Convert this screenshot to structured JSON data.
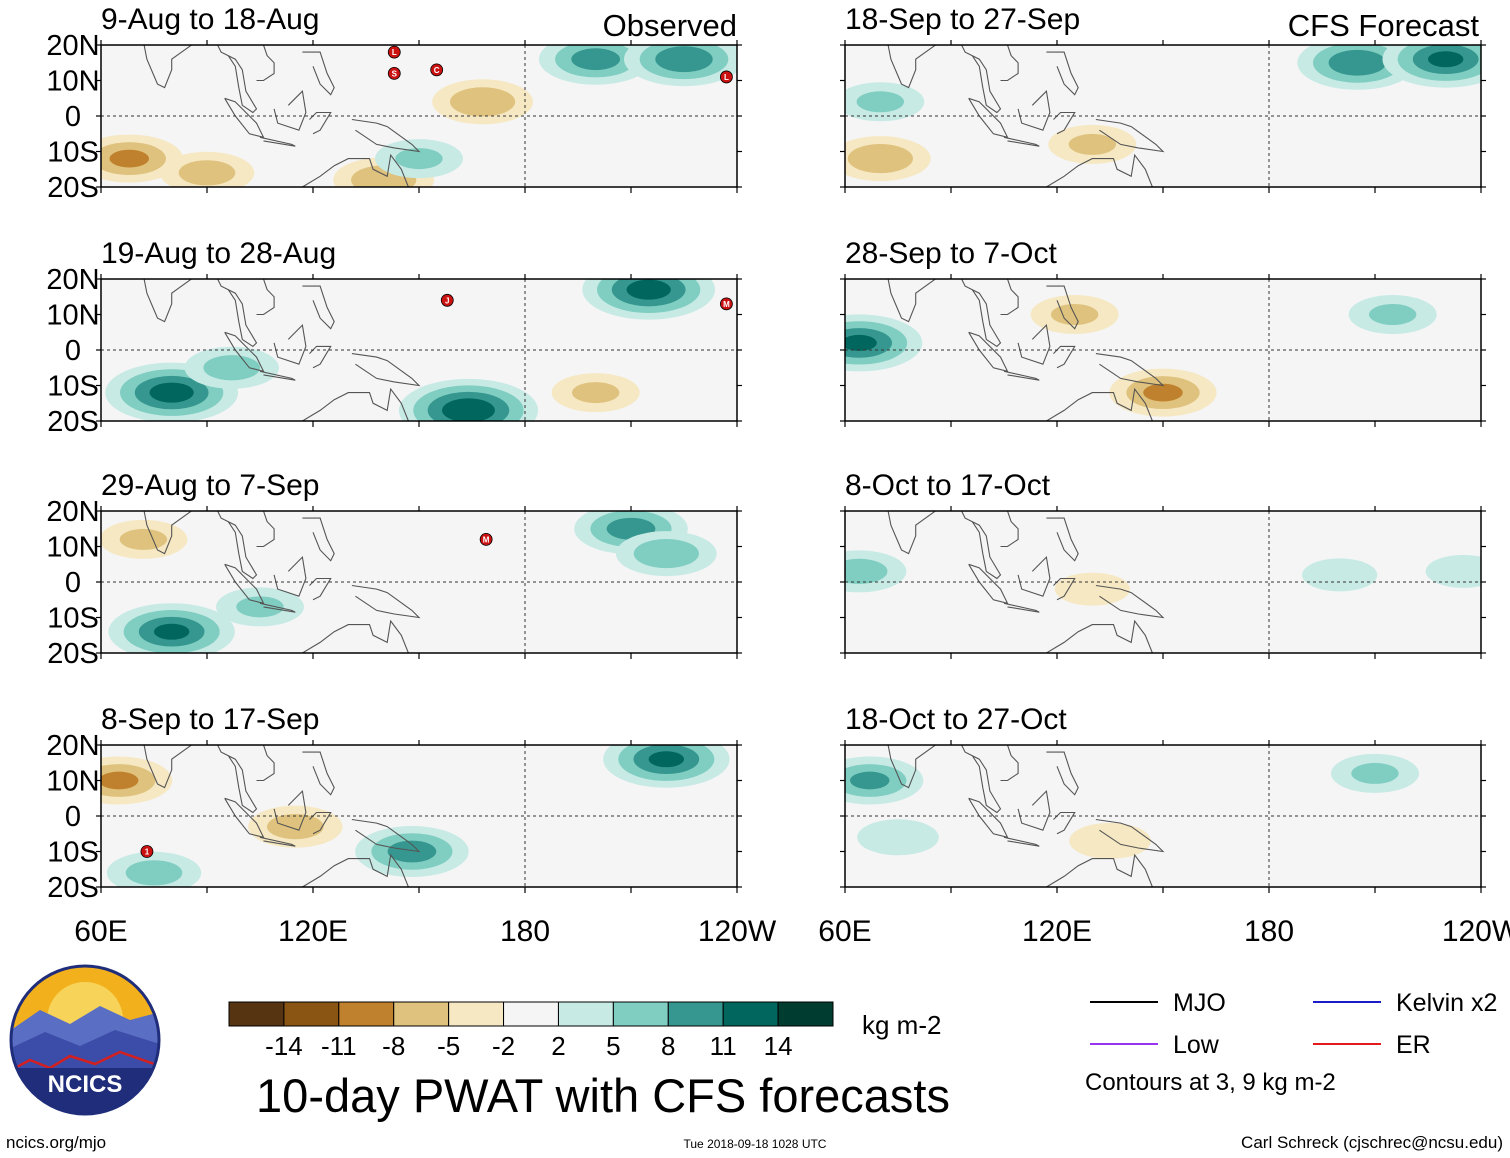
{
  "figure": {
    "title": "10-day PWAT with CFS forecasts",
    "observed_label": "Observed",
    "forecast_label": "CFS Forecast",
    "source_url": "ncics.org/mjo",
    "timestamp": "Tue 2018-09-18 1028 UTC",
    "author": "Carl Schreck (cjschrec@ncsu.edu)",
    "logo_text": "NCICS"
  },
  "colorbar": {
    "unit": "kg m-2",
    "ticks": [
      "-14",
      "-11",
      "-8",
      "-5",
      "-2",
      "2",
      "5",
      "8",
      "11",
      "14"
    ],
    "colors": [
      "#563412",
      "#8a5413",
      "#bf812d",
      "#dfc27d",
      "#f6e8c3",
      "#f5f5f5",
      "#c7eae5",
      "#80cdc1",
      "#35978f",
      "#01665e",
      "#003c30"
    ]
  },
  "legend": {
    "items": [
      {
        "label": "MJO",
        "color": "#000000"
      },
      {
        "label": "Low",
        "color": "#9933ee"
      },
      {
        "label": "Kelvin x2",
        "color": "#1c1cc8"
      },
      {
        "label": "ER",
        "color": "#e31a1c"
      }
    ],
    "note": "Contours at 3, 9 kg m-2"
  },
  "chart_data": {
    "type": "heatmap",
    "variable": "10-day precipitable water (PWAT) anomaly",
    "xlabel": "",
    "ylabel": "",
    "x_ticks": [
      "60E",
      "120E",
      "180",
      "120W"
    ],
    "y_ticks": [
      "20N",
      "10N",
      "0",
      "10S",
      "20S"
    ],
    "lon_range": [
      60,
      240
    ],
    "lat_range": [
      -20,
      20
    ],
    "observed_panels": [
      {
        "title": "9-Aug to 18-Aug",
        "storm_markers": [
          "L",
          "S",
          "C",
          "L"
        ],
        "anomalies": [
          {
            "lon": 68,
            "lat": -12,
            "value": -8
          },
          {
            "lon": 90,
            "lat": -16,
            "value": -6
          },
          {
            "lon": 140,
            "lat": -18,
            "value": -7
          },
          {
            "lon": 150,
            "lat": -12,
            "value": 5
          },
          {
            "lon": 200,
            "lat": 16,
            "value": 9
          },
          {
            "lon": 225,
            "lat": 16,
            "value": 10
          },
          {
            "lon": 168,
            "lat": 4,
            "value": -7
          }
        ]
      },
      {
        "title": "19-Aug to 28-Aug",
        "storm_markers": [
          "J",
          "M"
        ],
        "anomalies": [
          {
            "lon": 80,
            "lat": -12,
            "value": 12
          },
          {
            "lon": 97,
            "lat": -5,
            "value": 6
          },
          {
            "lon": 164,
            "lat": -17,
            "value": 13
          },
          {
            "lon": 215,
            "lat": 17,
            "value": 12
          },
          {
            "lon": 200,
            "lat": -12,
            "value": -5
          }
        ]
      },
      {
        "title": "29-Aug to 7-Sep",
        "storm_markers": [
          "M"
        ],
        "anomalies": [
          {
            "lon": 80,
            "lat": -14,
            "value": 11
          },
          {
            "lon": 105,
            "lat": -7,
            "value": 5
          },
          {
            "lon": 210,
            "lat": 15,
            "value": 9
          },
          {
            "lon": 220,
            "lat": 8,
            "value": 7
          },
          {
            "lon": 72,
            "lat": 12,
            "value": -5
          }
        ]
      },
      {
        "title": "8-Sep to 17-Sep",
        "storm_markers": [
          "1"
        ],
        "anomalies": [
          {
            "lon": 65,
            "lat": 10,
            "value": -8
          },
          {
            "lon": 115,
            "lat": -3,
            "value": -6
          },
          {
            "lon": 148,
            "lat": -10,
            "value": 9
          },
          {
            "lon": 220,
            "lat": 16,
            "value": 11
          },
          {
            "lon": 75,
            "lat": -16,
            "value": 6
          }
        ]
      }
    ],
    "forecast_panels": [
      {
        "title": "18-Sep to 27-Sep",
        "anomalies": [
          {
            "lon": 205,
            "lat": 15,
            "value": 10
          },
          {
            "lon": 230,
            "lat": 16,
            "value": 11
          },
          {
            "lon": 70,
            "lat": -12,
            "value": -7
          },
          {
            "lon": 130,
            "lat": -8,
            "value": -5
          },
          {
            "lon": 70,
            "lat": 4,
            "value": 5
          }
        ]
      },
      {
        "title": "28-Sep to 7-Oct",
        "anomalies": [
          {
            "lon": 64,
            "lat": 2,
            "value": 11
          },
          {
            "lon": 150,
            "lat": -12,
            "value": -8
          },
          {
            "lon": 125,
            "lat": 10,
            "value": -5
          },
          {
            "lon": 215,
            "lat": 10,
            "value": 5
          }
        ]
      },
      {
        "title": "8-Oct to 17-Oct",
        "anomalies": [
          {
            "lon": 64,
            "lat": 3,
            "value": 6
          },
          {
            "lon": 130,
            "lat": -2,
            "value": -3
          },
          {
            "lon": 200,
            "lat": 2,
            "value": 3
          },
          {
            "lon": 235,
            "lat": 3,
            "value": 3
          }
        ]
      },
      {
        "title": "18-Oct to 27-Oct",
        "anomalies": [
          {
            "lon": 67,
            "lat": 10,
            "value": 8
          },
          {
            "lon": 210,
            "lat": 12,
            "value": 5
          },
          {
            "lon": 135,
            "lat": -7,
            "value": -4
          },
          {
            "lon": 75,
            "lat": -6,
            "value": 4
          }
        ]
      }
    ]
  }
}
